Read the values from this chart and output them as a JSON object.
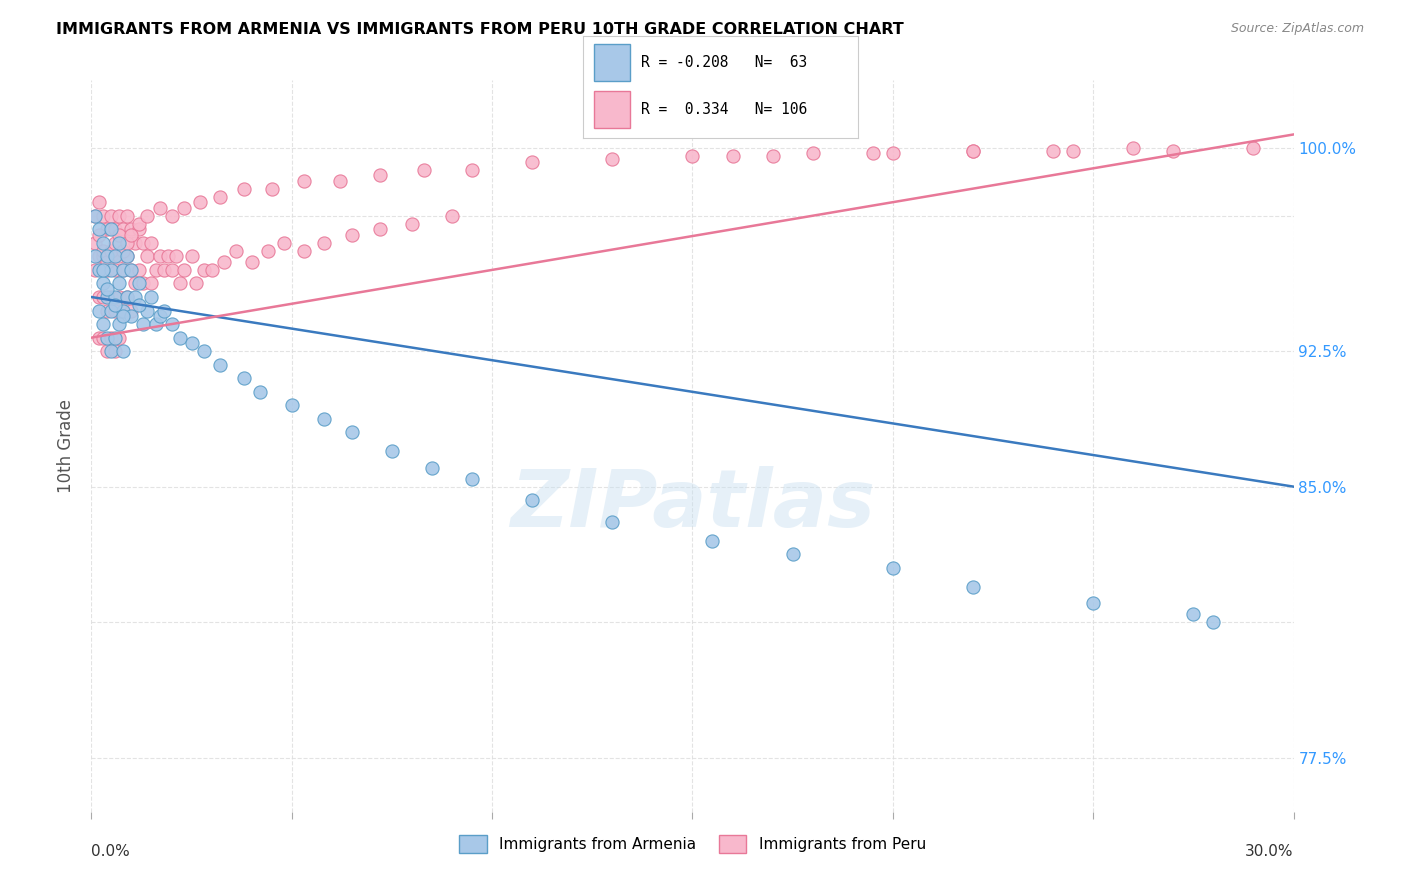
{
  "title": "IMMIGRANTS FROM ARMENIA VS IMMIGRANTS FROM PERU 10TH GRADE CORRELATION CHART",
  "source": "Source: ZipAtlas.com",
  "ylabel": "10th Grade",
  "xlim": [
    0.0,
    0.3
  ],
  "ylim": [
    0.755,
    1.025
  ],
  "armenia_color": "#a8c8e8",
  "armenia_color_edge": "#5a9ec8",
  "peru_color": "#f8b8cc",
  "peru_color_edge": "#e87898",
  "armenia_R": -0.208,
  "armenia_N": 63,
  "peru_R": 0.334,
  "peru_N": 106,
  "legend_label_armenia": "Immigrants from Armenia",
  "legend_label_peru": "Immigrants from Peru",
  "watermark": "ZIPatlas",
  "armenia_trend_x": [
    0.0,
    0.3
  ],
  "armenia_trend_y": [
    0.945,
    0.875
  ],
  "peru_trend_x": [
    0.0,
    0.3
  ],
  "peru_trend_y": [
    0.93,
    1.005
  ],
  "armenia_x": [
    0.001,
    0.001,
    0.002,
    0.002,
    0.002,
    0.003,
    0.003,
    0.003,
    0.004,
    0.004,
    0.004,
    0.005,
    0.005,
    0.005,
    0.005,
    0.006,
    0.006,
    0.006,
    0.007,
    0.007,
    0.007,
    0.008,
    0.008,
    0.008,
    0.009,
    0.009,
    0.01,
    0.01,
    0.011,
    0.012,
    0.013,
    0.014,
    0.015,
    0.016,
    0.017,
    0.018,
    0.02,
    0.022,
    0.025,
    0.028,
    0.032,
    0.038,
    0.042,
    0.05,
    0.058,
    0.065,
    0.075,
    0.085,
    0.095,
    0.11,
    0.13,
    0.155,
    0.175,
    0.2,
    0.22,
    0.25,
    0.275,
    0.28,
    0.003,
    0.004,
    0.006,
    0.008,
    0.012
  ],
  "armenia_y": [
    0.975,
    0.96,
    0.97,
    0.955,
    0.94,
    0.965,
    0.95,
    0.935,
    0.96,
    0.945,
    0.93,
    0.97,
    0.955,
    0.94,
    0.925,
    0.96,
    0.945,
    0.93,
    0.965,
    0.95,
    0.935,
    0.955,
    0.94,
    0.925,
    0.96,
    0.945,
    0.955,
    0.938,
    0.945,
    0.95,
    0.935,
    0.94,
    0.945,
    0.935,
    0.938,
    0.94,
    0.935,
    0.93,
    0.928,
    0.925,
    0.92,
    0.915,
    0.91,
    0.905,
    0.9,
    0.895,
    0.888,
    0.882,
    0.878,
    0.87,
    0.862,
    0.855,
    0.85,
    0.845,
    0.838,
    0.832,
    0.828,
    0.825,
    0.955,
    0.948,
    0.942,
    0.938,
    0.942
  ],
  "peru_x": [
    0.001,
    0.001,
    0.001,
    0.002,
    0.002,
    0.002,
    0.002,
    0.003,
    0.003,
    0.003,
    0.003,
    0.004,
    0.004,
    0.004,
    0.004,
    0.005,
    0.005,
    0.005,
    0.005,
    0.006,
    0.006,
    0.006,
    0.006,
    0.007,
    0.007,
    0.007,
    0.007,
    0.008,
    0.008,
    0.008,
    0.009,
    0.009,
    0.009,
    0.01,
    0.01,
    0.01,
    0.011,
    0.011,
    0.012,
    0.012,
    0.013,
    0.013,
    0.014,
    0.015,
    0.015,
    0.016,
    0.017,
    0.018,
    0.019,
    0.02,
    0.021,
    0.022,
    0.023,
    0.025,
    0.026,
    0.028,
    0.03,
    0.033,
    0.036,
    0.04,
    0.044,
    0.048,
    0.053,
    0.058,
    0.065,
    0.072,
    0.08,
    0.09,
    0.002,
    0.003,
    0.004,
    0.005,
    0.006,
    0.007,
    0.008,
    0.009,
    0.01,
    0.012,
    0.014,
    0.017,
    0.02,
    0.023,
    0.027,
    0.032,
    0.038,
    0.045,
    0.053,
    0.062,
    0.072,
    0.083,
    0.095,
    0.11,
    0.13,
    0.15,
    0.17,
    0.195,
    0.22,
    0.245,
    0.27,
    0.29,
    0.16,
    0.18,
    0.2,
    0.22,
    0.24,
    0.26
  ],
  "peru_y": [
    0.975,
    0.965,
    0.955,
    0.98,
    0.96,
    0.945,
    0.93,
    0.975,
    0.96,
    0.945,
    0.93,
    0.97,
    0.955,
    0.94,
    0.925,
    0.975,
    0.96,
    0.945,
    0.93,
    0.97,
    0.955,
    0.94,
    0.925,
    0.975,
    0.96,
    0.945,
    0.93,
    0.97,
    0.955,
    0.94,
    0.975,
    0.96,
    0.945,
    0.97,
    0.955,
    0.94,
    0.965,
    0.95,
    0.97,
    0.955,
    0.965,
    0.95,
    0.96,
    0.965,
    0.95,
    0.955,
    0.96,
    0.955,
    0.96,
    0.955,
    0.96,
    0.95,
    0.955,
    0.96,
    0.95,
    0.955,
    0.955,
    0.958,
    0.962,
    0.958,
    0.962,
    0.965,
    0.962,
    0.965,
    0.968,
    0.97,
    0.972,
    0.975,
    0.968,
    0.962,
    0.958,
    0.962,
    0.965,
    0.968,
    0.962,
    0.965,
    0.968,
    0.972,
    0.975,
    0.978,
    0.975,
    0.978,
    0.98,
    0.982,
    0.985,
    0.985,
    0.988,
    0.988,
    0.99,
    0.992,
    0.992,
    0.995,
    0.996,
    0.997,
    0.997,
    0.998,
    0.999,
    0.999,
    0.999,
    1.0,
    0.997,
    0.998,
    0.998,
    0.999,
    0.999,
    1.0
  ]
}
